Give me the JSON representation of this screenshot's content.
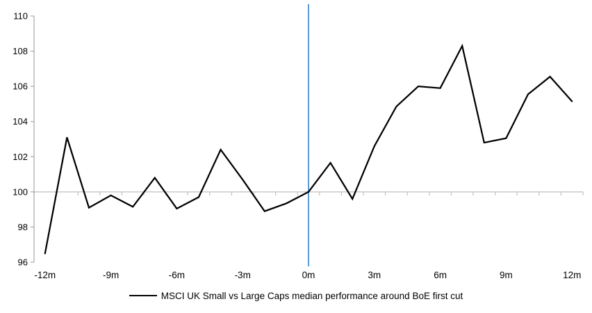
{
  "chart_data": {
    "type": "line",
    "title": "",
    "xlabel": "",
    "ylabel": "",
    "x": [
      -12,
      -11,
      -10,
      -9,
      -8,
      -7,
      -6,
      -5,
      -4,
      -3,
      -2,
      -1,
      0,
      1,
      2,
      3,
      4,
      5,
      6,
      7,
      8,
      9,
      10,
      11,
      12
    ],
    "series": [
      {
        "name": "MSCI UK Small vs Large Caps median performance around BoE first cut",
        "color": "#000000",
        "values": [
          96.5,
          103.1,
          99.1,
          99.8,
          99.15,
          100.8,
          99.05,
          99.7,
          102.4,
          100.7,
          98.9,
          99.35,
          100.0,
          101.65,
          99.6,
          102.6,
          104.85,
          106.0,
          105.9,
          108.3,
          102.8,
          103.05,
          105.55,
          106.55,
          105.15
        ]
      }
    ],
    "ylim": [
      96,
      110
    ],
    "y_ticks": [
      96,
      98,
      100,
      102,
      104,
      106,
      108,
      110
    ],
    "x_tick_months": [
      -12,
      -9,
      -6,
      -3,
      0,
      3,
      6,
      9,
      12
    ],
    "x_tick_labels": [
      "-12m",
      "-9m",
      "-6m",
      "-3m",
      "0m",
      "3m",
      "6m",
      "9m",
      "12m"
    ],
    "baseline_gridline_value": 100,
    "event_line": {
      "x": 0,
      "color": "#5B9BD5"
    },
    "grid": "horizontal-baseline-only",
    "legend_position": "bottom",
    "legend_label": "MSCI UK Small vs Large Caps median performance around BoE first cut",
    "colors": {
      "series": "#000000",
      "event_line": "#5B9BD5",
      "axis": "#A6A6A6",
      "gridline": "#BFBFBF",
      "text": "#000000"
    }
  }
}
